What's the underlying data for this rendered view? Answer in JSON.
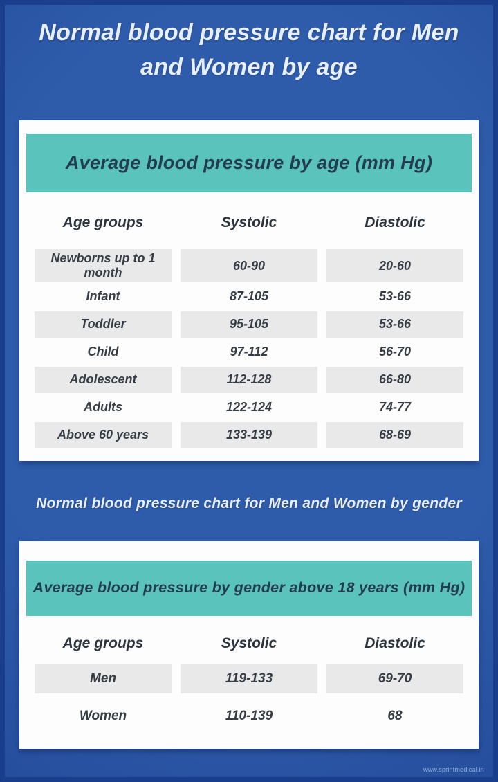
{
  "page": {
    "title": "Normal blood pressure chart for Men and Women by age",
    "subtitle": "Normal blood pressure chart for Men and Women by gender",
    "footer": "www.sprintmedical.in"
  },
  "colors": {
    "background_blue": "#2e5cab",
    "frame_navy": "#1a3d8c",
    "banner_teal": "#59c3bc",
    "row_shade_gray": "#e9e9e9",
    "table_text": "#363d47",
    "light_text": "#e8eff9"
  },
  "chart_data": [
    {
      "type": "table",
      "title": "Average blood pressure by age (mm Hg)",
      "columns": [
        "Age groups",
        "Systolic",
        "Diastolic"
      ],
      "rows": [
        [
          "Newborns up to 1 month",
          "60-90",
          "20-60"
        ],
        [
          "Infant",
          "87-105",
          "53-66"
        ],
        [
          "Toddler",
          "95-105",
          "53-66"
        ],
        [
          "Child",
          "97-112",
          "56-70"
        ],
        [
          "Adolescent",
          "112-128",
          "66-80"
        ],
        [
          "Adults",
          "122-124",
          "74-77"
        ],
        [
          "Above 60 years",
          "133-139",
          "68-69"
        ]
      ]
    },
    {
      "type": "table",
      "title": "Average blood pressure by gender above 18 years (mm Hg)",
      "columns": [
        "Age groups",
        "Systolic",
        "Diastolic"
      ],
      "rows": [
        [
          "Men",
          "119-133",
          "69-70"
        ],
        [
          "Women",
          "110-139",
          "68"
        ]
      ]
    }
  ]
}
